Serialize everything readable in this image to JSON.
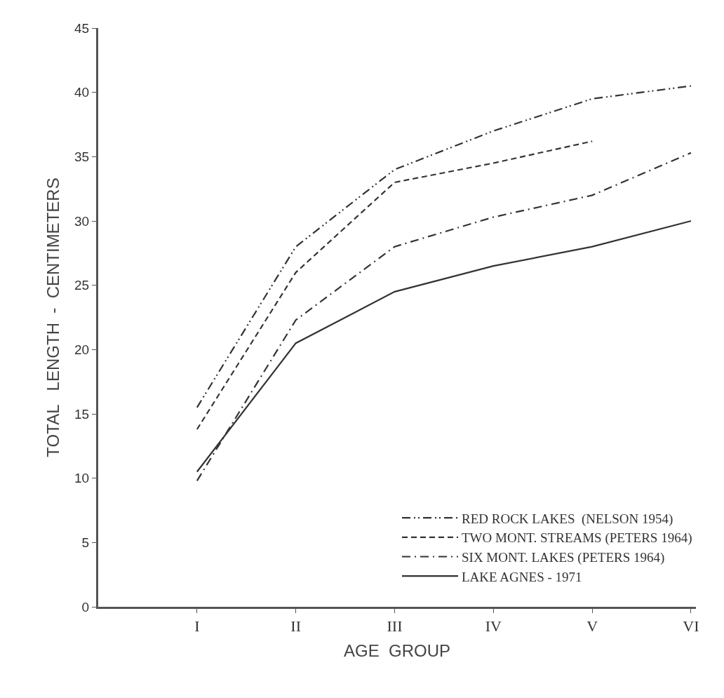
{
  "chart_data": {
    "type": "line",
    "xlabel": "AGE  GROUP",
    "ylabel": "TOTAL   LENGTH  -  CENTIMETERS",
    "categories": [
      "I",
      "II",
      "III",
      "IV",
      "V",
      "VI"
    ],
    "ylim": [
      0,
      45
    ],
    "yticks": [
      0,
      5,
      10,
      15,
      20,
      25,
      30,
      35,
      40,
      45
    ],
    "legend": "bottom right",
    "marker": "none",
    "series": [
      {
        "name": "RED ROCK LAKES  (NELSON 1954)",
        "color": "#333333",
        "line_style": "dashdotdot",
        "values": [
          15.5,
          28,
          34,
          37,
          39.5,
          40.5
        ]
      },
      {
        "name": "TWO MONT. STREAMS (PETERS 1964)",
        "color": "#333333",
        "line_style": "dashed",
        "values": [
          13.8,
          26,
          33,
          34.5,
          36.2,
          null
        ]
      },
      {
        "name": "SIX MONT. LAKES (PETERS 1964)",
        "color": "#333333",
        "line_style": "dashdot",
        "values": [
          9.8,
          22.3,
          28,
          30.3,
          32,
          35.3
        ]
      },
      {
        "name": "LAKE AGNES - 1971",
        "color": "#333333",
        "line_style": "solid",
        "values": [
          10.5,
          20.5,
          24.5,
          26.5,
          28,
          30
        ]
      }
    ]
  }
}
